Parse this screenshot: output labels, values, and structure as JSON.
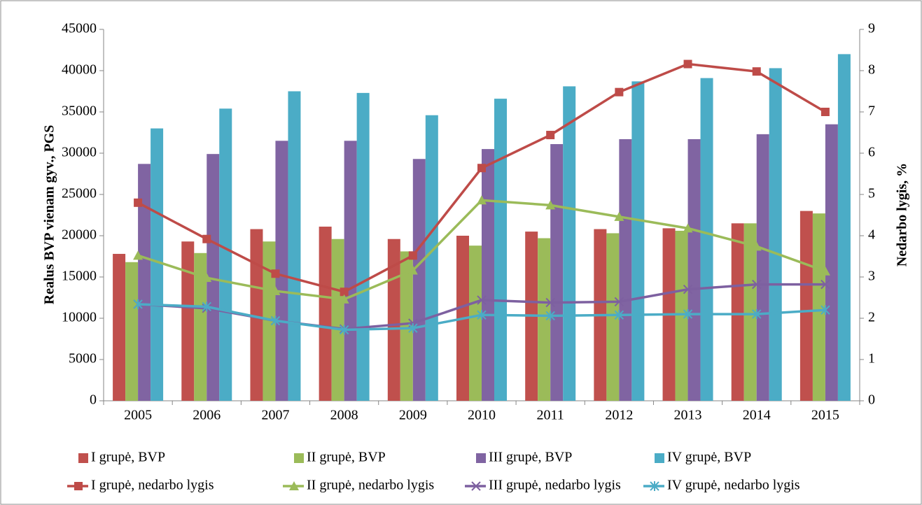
{
  "chart_data": {
    "type": "bar",
    "categories": [
      "2005",
      "2006",
      "2007",
      "2008",
      "2009",
      "2010",
      "2011",
      "2012",
      "2013",
      "2014",
      "2015"
    ],
    "ylabel": "Realus BVP vienam gyv., PGS",
    "y2label": "Nedarbo lygis, %",
    "ylim": [
      0,
      45000
    ],
    "yticks": [
      0,
      5000,
      10000,
      15000,
      20000,
      25000,
      30000,
      35000,
      40000,
      45000
    ],
    "y2lim": [
      0,
      9
    ],
    "y2ticks": [
      0,
      1,
      2,
      3,
      4,
      5,
      6,
      7,
      8,
      9
    ],
    "series": [
      {
        "name": "I grupė, BVP",
        "type": "bar",
        "color": "#c0504d",
        "values": [
          17800,
          19300,
          20800,
          21100,
          19600,
          20000,
          20500,
          20800,
          20900,
          21500,
          23000
        ]
      },
      {
        "name": "II grupė, BVP",
        "type": "bar",
        "color": "#9bbb59",
        "values": [
          16800,
          17900,
          19300,
          19600,
          18100,
          18800,
          19700,
          20300,
          20600,
          21500,
          22700
        ]
      },
      {
        "name": "III grupė, BVP",
        "type": "bar",
        "color": "#8064a2",
        "values": [
          28700,
          29900,
          31500,
          31500,
          29300,
          30500,
          31100,
          31700,
          31700,
          32300,
          33500
        ]
      },
      {
        "name": "IV grupė, BVP",
        "type": "bar",
        "color": "#4bacc6",
        "values": [
          33000,
          35400,
          37500,
          37300,
          34600,
          36600,
          38100,
          38700,
          39100,
          40300,
          42000
        ]
      },
      {
        "name": "I grupė, nedarbo lygis",
        "type": "line",
        "axis": "y2",
        "marker": "square",
        "color": "#be4b48",
        "values": [
          4.8,
          3.92,
          3.08,
          2.64,
          3.52,
          5.64,
          6.44,
          7.48,
          8.16,
          7.98,
          7.0
        ]
      },
      {
        "name": "II grupė, nedarbo lygis",
        "type": "line",
        "axis": "y2",
        "marker": "triangle",
        "color": "#9bbb59",
        "values": [
          3.52,
          2.98,
          2.66,
          2.46,
          3.16,
          4.86,
          4.74,
          4.46,
          4.18,
          3.74,
          3.14
        ]
      },
      {
        "name": "III grupė, nedarbo lygis",
        "type": "line",
        "axis": "y2",
        "marker": "x",
        "color": "#7d60a0",
        "values": [
          2.34,
          2.24,
          1.94,
          1.74,
          1.88,
          2.44,
          2.38,
          2.4,
          2.7,
          2.82,
          2.82
        ]
      },
      {
        "name": "IV grupė, nedarbo lygis",
        "type": "line",
        "axis": "y2",
        "marker": "star",
        "color": "#4bacc6",
        "values": [
          2.34,
          2.28,
          1.94,
          1.72,
          1.76,
          2.08,
          2.06,
          2.08,
          2.1,
          2.1,
          2.2
        ]
      }
    ]
  }
}
